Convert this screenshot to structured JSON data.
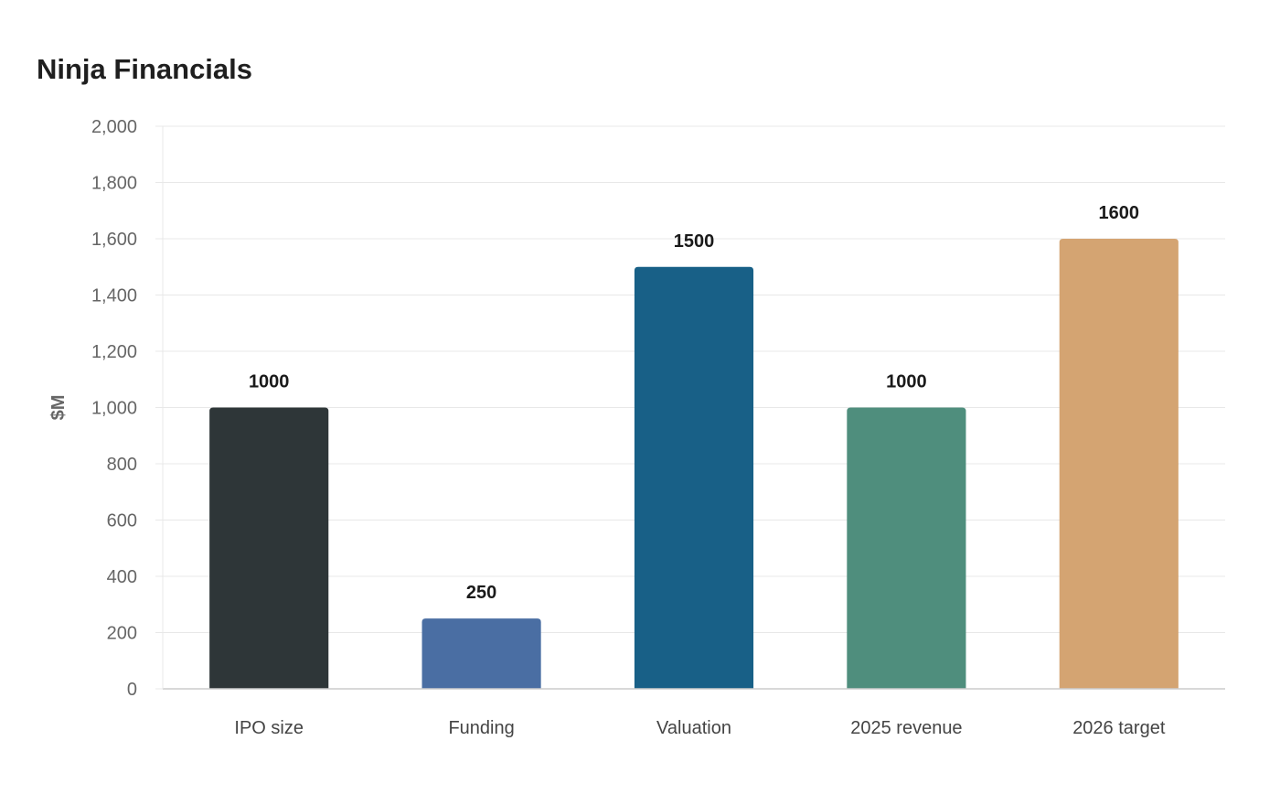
{
  "chart_data": {
    "type": "bar",
    "title": "Ninja Financials",
    "xlabel": "",
    "ylabel": "$M",
    "categories": [
      "IPO size",
      "Funding",
      "Valuation",
      "2025 revenue",
      "2026 target"
    ],
    "values": [
      1000,
      250,
      1500,
      1000,
      1600
    ],
    "data_labels": [
      "1000",
      "250",
      "1500",
      "1000",
      "1600"
    ],
    "colors": [
      "#2e3638",
      "#4a6ea3",
      "#186087",
      "#4f8e7d",
      "#d4a472"
    ],
    "ylim": [
      0,
      2000
    ],
    "yticks": [
      0,
      200,
      400,
      600,
      800,
      1000,
      1200,
      1400,
      1600,
      1800,
      2000
    ],
    "ytick_labels": [
      "0",
      "200",
      "400",
      "600",
      "800",
      "1,000",
      "1,200",
      "1,400",
      "1,600",
      "1,800",
      "2,000"
    ],
    "grid": true,
    "legend": "none"
  }
}
